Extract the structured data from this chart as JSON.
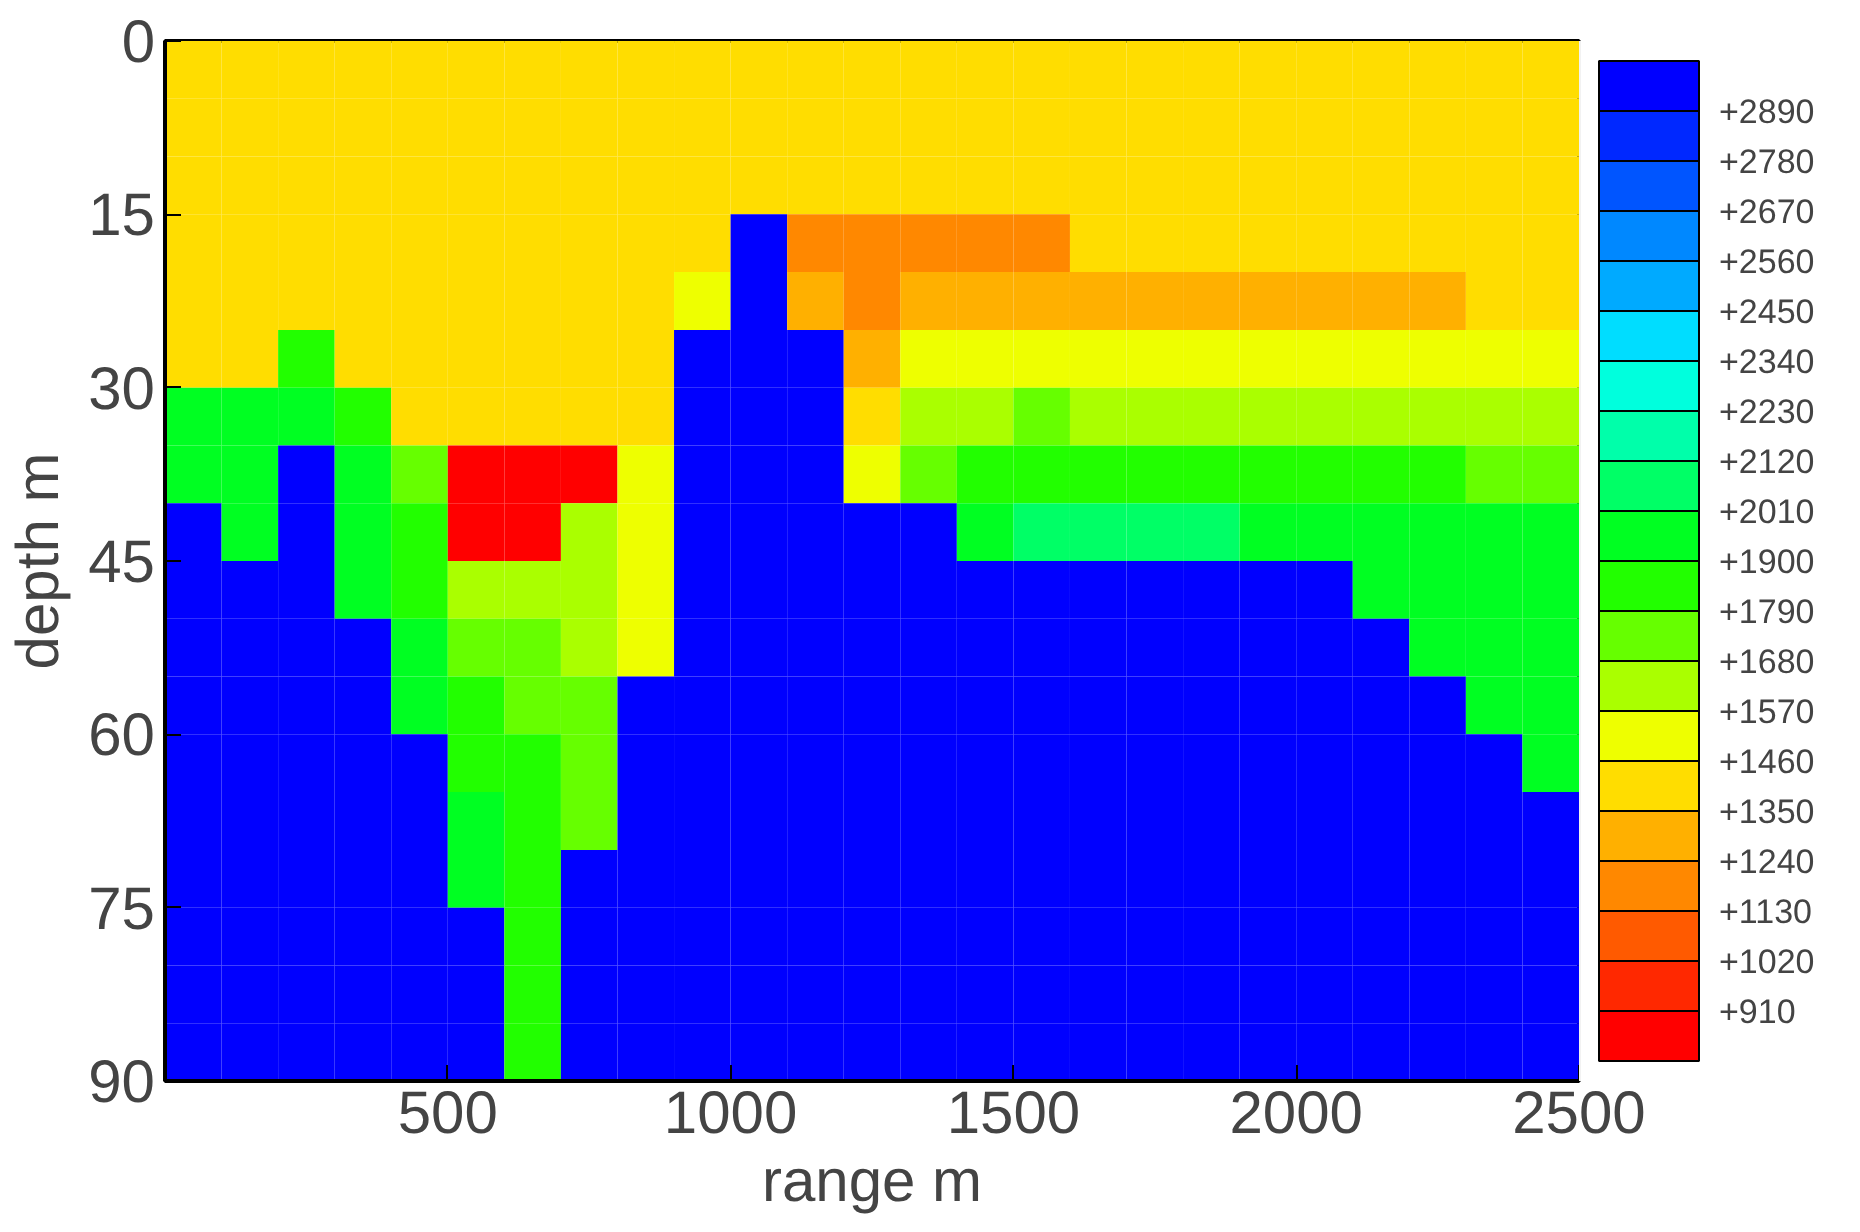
{
  "chart_data": {
    "type": "heatmap",
    "xlabel": "range m",
    "ylabel": "depth m",
    "x": [
      50,
      150,
      250,
      350,
      450,
      550,
      650,
      750,
      850,
      950,
      1050,
      1150,
      1250,
      1350,
      1450,
      1550,
      1650,
      1750,
      1850,
      1950,
      2050,
      2150,
      2250,
      2350,
      2450
    ],
    "y": [
      2.5,
      7.5,
      12.5,
      17.5,
      22.5,
      27.5,
      32.5,
      37.5,
      42.5,
      47.5,
      52.5,
      57.5,
      62.5,
      67.5,
      72.5,
      77.5,
      82.5,
      87.5
    ],
    "xlim": [
      0,
      2500
    ],
    "xticks": [
      500,
      1000,
      1500,
      2000,
      2500
    ],
    "ylim": [
      90,
      0
    ],
    "yticks": [
      0,
      15,
      30,
      45,
      60,
      75,
      90
    ],
    "clim": [
      800,
      3000
    ],
    "cticks": [
      {
        "value": 910,
        "label": "+910"
      },
      {
        "value": 1020,
        "label": "+1020"
      },
      {
        "value": 1130,
        "label": "+1130"
      },
      {
        "value": 1240,
        "label": "+1240"
      },
      {
        "value": 1350,
        "label": "+1350"
      },
      {
        "value": 1460,
        "label": "+1460"
      },
      {
        "value": 1570,
        "label": "+1570"
      },
      {
        "value": 1680,
        "label": "+1680"
      },
      {
        "value": 1790,
        "label": "+1790"
      },
      {
        "value": 1900,
        "label": "+1900"
      },
      {
        "value": 2010,
        "label": "+2010"
      },
      {
        "value": 2120,
        "label": "+2120"
      },
      {
        "value": 2230,
        "label": "+2230"
      },
      {
        "value": 2340,
        "label": "+2340"
      },
      {
        "value": 2450,
        "label": "+2450"
      },
      {
        "value": 2560,
        "label": "+2560"
      },
      {
        "value": 2670,
        "label": "+2670"
      },
      {
        "value": 2780,
        "label": "+2780"
      },
      {
        "value": 2890,
        "label": "+2890"
      }
    ],
    "colors": [
      "#ff0000",
      "#ff2800",
      "#ff5a00",
      "#ff8800",
      "#ffb000",
      "#ffdd00",
      "#eeff00",
      "#aaff00",
      "#66ff00",
      "#22ff00",
      "#00ff22",
      "#00ff66",
      "#00ffaa",
      "#00ffdd",
      "#00ddff",
      "#00aaff",
      "#0088ff",
      "#0055ff",
      "#0028ff",
      "#0000ff"
    ],
    "cells": [
      [
        1400,
        1400,
        1400,
        1400,
        1400,
        1400,
        1400,
        1400,
        1400,
        1400,
        1400,
        1400,
        1400,
        1400,
        1400,
        1400,
        1400,
        1400,
        1400,
        1400,
        1400,
        1400,
        1400,
        1400,
        1400
      ],
      [
        1400,
        1400,
        1400,
        1400,
        1400,
        1400,
        1400,
        1400,
        1400,
        1400,
        1400,
        1400,
        1400,
        1400,
        1400,
        1400,
        1400,
        1400,
        1400,
        1400,
        1400,
        1400,
        1400,
        1400,
        1400
      ],
      [
        1400,
        1400,
        1400,
        1400,
        1400,
        1400,
        1400,
        1400,
        1400,
        1400,
        1400,
        1400,
        1400,
        1400,
        1400,
        1400,
        1400,
        1400,
        1400,
        1400,
        1400,
        1400,
        1400,
        1400,
        1400
      ],
      [
        1400,
        1400,
        1400,
        1400,
        1400,
        1400,
        1400,
        1400,
        1400,
        1400,
        2950,
        1185,
        1185,
        1185,
        1185,
        1185,
        1400,
        1400,
        1400,
        1400,
        1400,
        1400,
        1400,
        1400,
        1400
      ],
      [
        1400,
        1400,
        1400,
        1400,
        1400,
        1400,
        1400,
        1400,
        1400,
        1515,
        2950,
        1295,
        1185,
        1295,
        1295,
        1295,
        1295,
        1295,
        1295,
        1295,
        1295,
        1295,
        1295,
        1400,
        1400
      ],
      [
        1400,
        1400,
        1845,
        1400,
        1400,
        1400,
        1400,
        1400,
        1400,
        2950,
        2950,
        2950,
        1295,
        1515,
        1515,
        1515,
        1515,
        1515,
        1515,
        1515,
        1515,
        1515,
        1515,
        1515,
        1515
      ],
      [
        1955,
        1955,
        1955,
        1845,
        1400,
        1400,
        1400,
        1400,
        1400,
        2950,
        2950,
        2950,
        1400,
        1625,
        1625,
        1735,
        1625,
        1625,
        1625,
        1625,
        1625,
        1625,
        1625,
        1625,
        1625
      ],
      [
        1955,
        1955,
        2950,
        1955,
        1735,
        855,
        855,
        855,
        1515,
        2950,
        2950,
        2950,
        1515,
        1735,
        1845,
        1845,
        1845,
        1845,
        1845,
        1845,
        1845,
        1845,
        1845,
        1735,
        1735
      ],
      [
        2950,
        1955,
        2950,
        1955,
        1845,
        855,
        855,
        1625,
        1515,
        2950,
        2950,
        2950,
        2950,
        2950,
        1955,
        2065,
        2065,
        2065,
        2065,
        1955,
        1955,
        1955,
        1955,
        1955,
        1955
      ],
      [
        2950,
        2950,
        2950,
        1955,
        1845,
        1625,
        1625,
        1625,
        1515,
        2950,
        2950,
        2950,
        2950,
        2950,
        2950,
        2950,
        2950,
        2950,
        2950,
        2950,
        2950,
        1955,
        1955,
        1955,
        1955
      ],
      [
        2950,
        2950,
        2950,
        2950,
        1955,
        1735,
        1735,
        1625,
        1515,
        2950,
        2950,
        2950,
        2950,
        2950,
        2950,
        2950,
        2950,
        2950,
        2950,
        2950,
        2950,
        2950,
        1955,
        1955,
        1955
      ],
      [
        2950,
        2950,
        2950,
        2950,
        1955,
        1845,
        1735,
        1735,
        2950,
        2950,
        2950,
        2950,
        2950,
        2950,
        2950,
        2950,
        2950,
        2950,
        2950,
        2950,
        2950,
        2950,
        2950,
        1955,
        1955
      ],
      [
        2950,
        2950,
        2950,
        2950,
        2950,
        1845,
        1845,
        1735,
        2950,
        2950,
        2950,
        2950,
        2950,
        2950,
        2950,
        2950,
        2950,
        2950,
        2950,
        2950,
        2950,
        2950,
        2950,
        2950,
        1955
      ],
      [
        2950,
        2950,
        2950,
        2950,
        2950,
        1955,
        1845,
        1735,
        2950,
        2950,
        2950,
        2950,
        2950,
        2950,
        2950,
        2950,
        2950,
        2950,
        2950,
        2950,
        2950,
        2950,
        2950,
        2950,
        2950
      ],
      [
        2950,
        2950,
        2950,
        2950,
        2950,
        1955,
        1845,
        2950,
        2950,
        2950,
        2950,
        2950,
        2950,
        2950,
        2950,
        2950,
        2950,
        2950,
        2950,
        2950,
        2950,
        2950,
        2950,
        2950,
        2950
      ],
      [
        2950,
        2950,
        2950,
        2950,
        2950,
        2950,
        1845,
        2950,
        2950,
        2950,
        2950,
        2950,
        2950,
        2950,
        2950,
        2950,
        2950,
        2950,
        2950,
        2950,
        2950,
        2950,
        2950,
        2950,
        2950
      ],
      [
        2950,
        2950,
        2950,
        2950,
        2950,
        2950,
        1845,
        2950,
        2950,
        2950,
        2950,
        2950,
        2950,
        2950,
        2950,
        2950,
        2950,
        2950,
        2950,
        2950,
        2950,
        2950,
        2950,
        2950,
        2950
      ],
      [
        2950,
        2950,
        2950,
        2950,
        2950,
        2950,
        1845,
        2950,
        2950,
        2950,
        2950,
        2950,
        2950,
        2950,
        2950,
        2950,
        2950,
        2950,
        2950,
        2950,
        2950,
        2950,
        2950,
        2950,
        2950
      ]
    ]
  }
}
